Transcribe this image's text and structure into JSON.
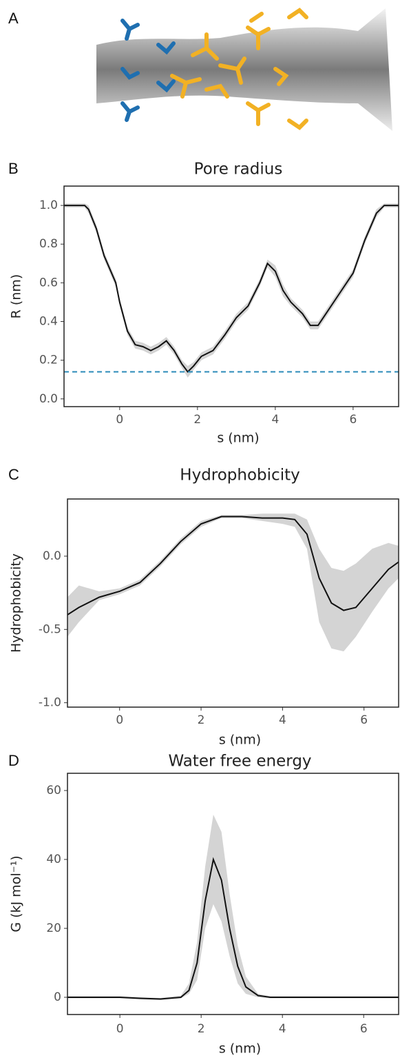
{
  "panel_a": {
    "panel": "A"
  },
  "chart_data": [
    {
      "type": "line",
      "panel": "B",
      "title": "Pore radius",
      "x_label": "s (nm)",
      "y_label": "R (nm)",
      "xlim": [
        -1.43,
        7.17
      ],
      "ylim": [
        -0.04,
        1.1
      ],
      "xticks": [
        0,
        2,
        4,
        6
      ],
      "yticks": [
        {
          "value": 0,
          "label": "0.0"
        },
        0.2,
        0.4,
        0.6,
        0.8,
        {
          "value": 1,
          "label": "1.0"
        }
      ],
      "hline": {
        "value": 0.14,
        "color": "#2a8ab8"
      },
      "x": [
        -1.43,
        -0.9,
        -0.8,
        -0.6,
        -0.4,
        -0.1,
        0.0,
        0.2,
        0.4,
        0.6,
        0.8,
        1.0,
        1.2,
        1.4,
        1.6,
        1.75,
        1.9,
        2.1,
        2.4,
        2.7,
        3.0,
        3.3,
        3.6,
        3.8,
        4.0,
        4.2,
        4.4,
        4.7,
        4.9,
        5.1,
        5.3,
        5.6,
        6.0,
        6.3,
        6.6,
        6.8,
        7.17
      ],
      "series": [
        {
          "color": "#111111",
          "band_color": "#d4d4d4",
          "values": [
            1.0,
            1.0,
            0.98,
            0.88,
            0.74,
            0.6,
            0.5,
            0.35,
            0.28,
            0.27,
            0.25,
            0.27,
            0.3,
            0.25,
            0.18,
            0.14,
            0.17,
            0.22,
            0.25,
            0.33,
            0.42,
            0.48,
            0.6,
            0.7,
            0.66,
            0.56,
            0.5,
            0.44,
            0.38,
            0.38,
            0.44,
            0.53,
            0.65,
            0.82,
            0.96,
            1.0,
            1.0
          ],
          "lower": [
            0.99,
            0.99,
            0.96,
            0.86,
            0.72,
            0.58,
            0.48,
            0.33,
            0.26,
            0.25,
            0.23,
            0.25,
            0.28,
            0.23,
            0.16,
            0.11,
            0.15,
            0.2,
            0.23,
            0.31,
            0.4,
            0.46,
            0.58,
            0.68,
            0.63,
            0.53,
            0.48,
            0.42,
            0.36,
            0.36,
            0.42,
            0.51,
            0.63,
            0.8,
            0.94,
            0.99,
            0.99
          ],
          "upper": [
            1.01,
            1.01,
            1.0,
            0.9,
            0.76,
            0.62,
            0.52,
            0.37,
            0.3,
            0.29,
            0.27,
            0.29,
            0.32,
            0.27,
            0.2,
            0.17,
            0.19,
            0.24,
            0.27,
            0.35,
            0.44,
            0.5,
            0.62,
            0.72,
            0.69,
            0.59,
            0.52,
            0.46,
            0.4,
            0.4,
            0.46,
            0.55,
            0.67,
            0.84,
            0.98,
            1.01,
            1.01
          ]
        }
      ]
    },
    {
      "type": "line",
      "panel": "C",
      "title": "Hydrophobicity",
      "x_label": "s (nm)",
      "y_label": "Hydrophobicity",
      "xlim": [
        -1.28,
        6.85
      ],
      "ylim": [
        -1.03,
        0.39
      ],
      "xticks": [
        0,
        2,
        4,
        6
      ],
      "yticks": [
        {
          "value": -1,
          "label": "-1.0"
        },
        -0.5,
        {
          "value": 0,
          "label": "0.0"
        }
      ],
      "x": [
        -1.28,
        -1.0,
        -0.5,
        0.0,
        0.5,
        1.0,
        1.5,
        2.0,
        2.5,
        3.0,
        3.5,
        4.0,
        4.3,
        4.6,
        4.9,
        5.2,
        5.5,
        5.8,
        6.2,
        6.6,
        6.85
      ],
      "series": [
        {
          "color": "#111111",
          "band_color": "#d4d4d4",
          "values": [
            -0.4,
            -0.35,
            -0.28,
            -0.24,
            -0.18,
            -0.05,
            0.1,
            0.22,
            0.27,
            0.27,
            0.26,
            0.26,
            0.25,
            0.15,
            -0.15,
            -0.32,
            -0.37,
            -0.35,
            -0.22,
            -0.09,
            -0.04
          ],
          "lower": [
            -0.55,
            -0.45,
            -0.3,
            -0.26,
            -0.2,
            -0.07,
            0.08,
            0.2,
            0.26,
            0.26,
            0.24,
            0.22,
            0.2,
            0.05,
            -0.45,
            -0.63,
            -0.65,
            -0.55,
            -0.38,
            -0.22,
            -0.15
          ],
          "upper": [
            -0.28,
            -0.2,
            -0.24,
            -0.22,
            -0.16,
            -0.03,
            0.12,
            0.24,
            0.28,
            0.28,
            0.29,
            0.29,
            0.29,
            0.25,
            0.05,
            -0.08,
            -0.1,
            -0.05,
            0.05,
            0.09,
            0.07
          ]
        }
      ]
    },
    {
      "type": "line",
      "panel": "D",
      "title": "Water free energy",
      "x_label": "s (nm)",
      "y_label": "G (kJ mol⁻¹)",
      "xlim": [
        -1.29,
        6.86
      ],
      "ylim": [
        -5,
        65
      ],
      "xticks": [
        0,
        2,
        4,
        6
      ],
      "yticks": [
        0,
        20,
        40,
        60
      ],
      "x": [
        -1.29,
        0.0,
        0.5,
        1.0,
        1.5,
        1.7,
        1.9,
        2.1,
        2.3,
        2.5,
        2.7,
        2.9,
        3.1,
        3.4,
        3.7,
        5.0,
        6.86
      ],
      "series": [
        {
          "color": "#111111",
          "band_color": "#d4d4d4",
          "values": [
            0,
            0,
            -0.3,
            -0.5,
            0,
            2,
            10,
            28,
            40,
            34,
            20,
            9,
            3,
            0.5,
            0,
            0,
            0
          ],
          "lower": [
            -0.3,
            -0.3,
            -0.6,
            -0.8,
            -0.3,
            1,
            5,
            20,
            27,
            22,
            12,
            4,
            1,
            0,
            -0.3,
            -0.3,
            -0.3
          ],
          "upper": [
            0.3,
            0.3,
            0,
            -0.2,
            0.5,
            4,
            16,
            38,
            53,
            48,
            30,
            15,
            6,
            1,
            0.3,
            0.3,
            0.3
          ]
        }
      ]
    }
  ]
}
